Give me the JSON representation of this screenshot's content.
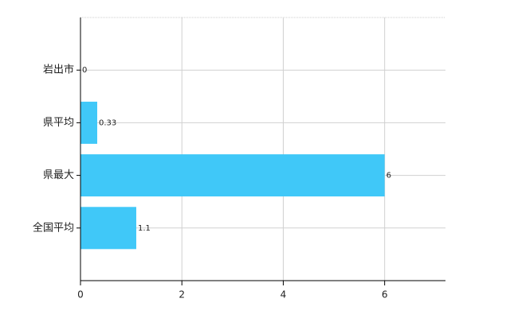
{
  "chart_data": {
    "type": "bar",
    "orientation": "horizontal",
    "categories": [
      "岩出市",
      "県平均",
      "県最大",
      "全国平均"
    ],
    "values": [
      0,
      0.33,
      6,
      1.1
    ],
    "color": "#40c8f8",
    "xlim": [
      0,
      7.2
    ],
    "xticks": [
      0,
      2,
      4,
      6
    ],
    "grid": true
  }
}
